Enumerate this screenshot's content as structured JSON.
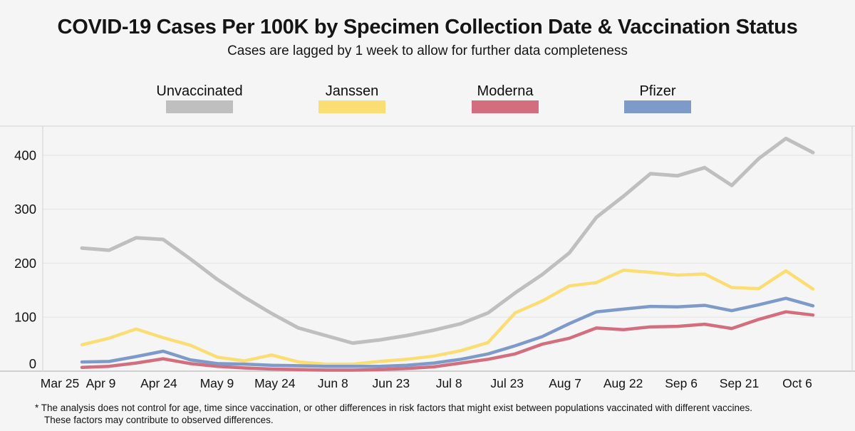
{
  "chart_data": {
    "type": "line",
    "title": "COVID-19 Cases Per 100K by Specimen Collection Date & Vaccination Status",
    "subtitle": "Cases are lagged by 1 week to allow for further data completeness",
    "xlabel": "",
    "ylabel": "",
    "ylim": [
      0,
      454
    ],
    "grid": true,
    "legend_position": "top",
    "y_ticks": [
      0,
      100,
      200,
      300,
      400
    ],
    "x_tick_labels": [
      "Mar 25",
      "Apr 9",
      "Apr 24",
      "May 9",
      "May 24",
      "Jun 8",
      "Jun 23",
      "Jul 8",
      "Jul 23",
      "Aug 7",
      "Aug 22",
      "Sep 6",
      "Sep 21",
      "Oct 6"
    ],
    "x": [
      "Apr 4",
      "Apr 11",
      "Apr 18",
      "Apr 25",
      "May 2",
      "May 9",
      "May 16",
      "May 23",
      "May 30",
      "Jun 6",
      "Jun 13",
      "Jun 20",
      "Jun 27",
      "Jul 4",
      "Jul 11",
      "Jul 18",
      "Jul 25",
      "Aug 1",
      "Aug 8",
      "Aug 15",
      "Aug 22",
      "Aug 29",
      "Sep 5",
      "Sep 12",
      "Sep 19",
      "Sep 26",
      "Oct 3",
      "Oct 10"
    ],
    "series": [
      {
        "name": "Unvaccinated",
        "color": "#bfbfbf",
        "values": [
          228,
          224,
          247,
          244,
          208,
          170,
          137,
          107,
          80,
          66,
          52,
          58,
          66,
          76,
          88,
          108,
          145,
          179,
          219,
          285,
          324,
          366,
          362,
          377,
          344,
          394,
          431,
          405
        ]
      },
      {
        "name": "Janssen",
        "color": "#fade73",
        "values": [
          49,
          61,
          78,
          62,
          48,
          26,
          19,
          30,
          17,
          13,
          13,
          18,
          22,
          28,
          38,
          53,
          108,
          130,
          158,
          164,
          187,
          183,
          178,
          180,
          155,
          153,
          186,
          152
        ]
      },
      {
        "name": "Moderna",
        "color": "#d26e7e",
        "values": [
          7,
          9,
          15,
          23,
          14,
          9,
          6,
          4,
          3,
          2,
          2,
          3,
          5,
          8,
          15,
          22,
          32,
          50,
          61,
          80,
          77,
          82,
          83,
          87,
          79,
          96,
          110,
          104
        ]
      },
      {
        "name": "Pfizer",
        "color": "#7e9ac9",
        "values": [
          17,
          18,
          27,
          37,
          21,
          14,
          13,
          11,
          10,
          9,
          9,
          9,
          11,
          15,
          22,
          32,
          47,
          64,
          88,
          110,
          115,
          120,
          119,
          122,
          112,
          123,
          135,
          121
        ]
      }
    ]
  },
  "legend": {
    "items": [
      {
        "label": "Unvaccinated",
        "color": "#bfbfbf"
      },
      {
        "label": "Janssen",
        "color": "#fade73"
      },
      {
        "label": "Moderna",
        "color": "#d26e7e"
      },
      {
        "label": "Pfizer",
        "color": "#7e9ac9"
      }
    ]
  },
  "footnote": {
    "line1": "* The analysis does not control for age, time since vaccination, or other differences in risk factors that might exist between populations vaccinated with different vaccines.",
    "line2": "These factors may contribute to observed differences."
  },
  "colors": {
    "background": "#f5f5f5",
    "gridline": "#e7e7e7",
    "axis_line": "#c3c3c3",
    "spine": "#d9d9d9",
    "text": "#131313"
  }
}
